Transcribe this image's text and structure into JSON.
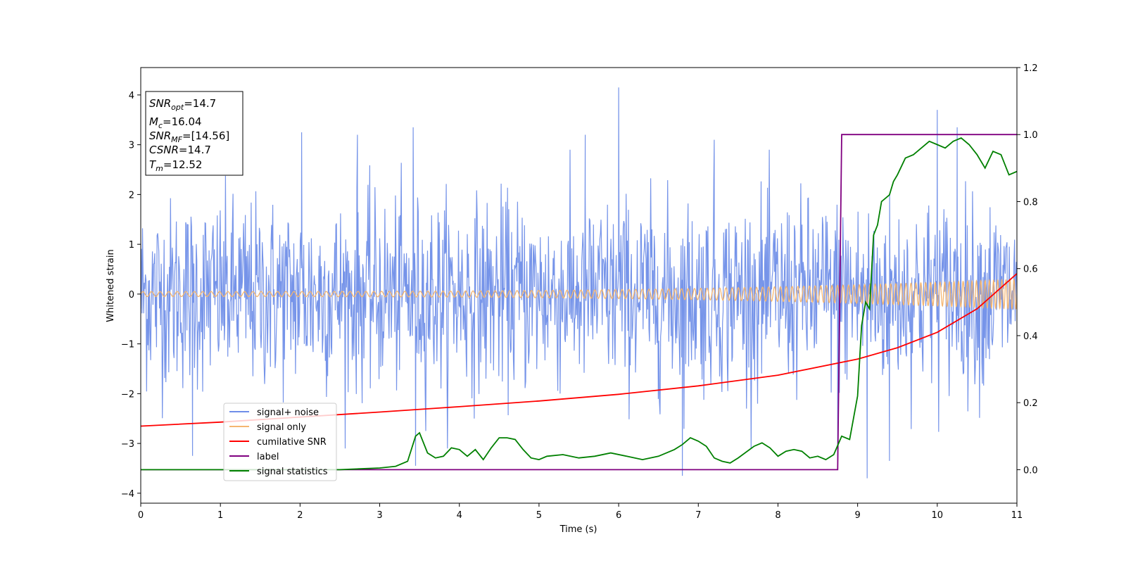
{
  "chart_data": {
    "type": "line",
    "title": "",
    "xlabel": "Time (s)",
    "ylabel": "Whitened strain",
    "xlim": [
      0,
      11
    ],
    "ylim": [
      -4.2,
      4.55
    ],
    "y2lim": [
      -0.1,
      1.2
    ],
    "x_ticks": [
      0,
      1,
      2,
      3,
      4,
      5,
      6,
      7,
      8,
      9,
      10,
      11
    ],
    "y_ticks": [
      -4,
      -3,
      -2,
      -1,
      0,
      1,
      2,
      3,
      4
    ],
    "y_tick_labels": [
      "−4",
      "−3",
      "−2",
      "−1",
      "0",
      "1",
      "2",
      "3",
      "4"
    ],
    "y2_ticks": [
      0.0,
      0.2,
      0.4,
      0.6,
      0.8,
      1.0,
      1.2
    ],
    "y2_tick_labels": [
      "0.0",
      "0.2",
      "0.4",
      "0.6",
      "0.8",
      "1.0",
      "1.2"
    ],
    "legend": {
      "placement": "lower-left",
      "entries": [
        {
          "name": "signal+ noise",
          "color": "#6f8ee8"
        },
        {
          "name": "signal only",
          "color": "#f5b670"
        },
        {
          "name": "cumilative SNR",
          "color": "#ff0000"
        },
        {
          "name": "label",
          "color": "#800080"
        },
        {
          "name": "signal statistics",
          "color": "#008000"
        }
      ]
    },
    "annotation": {
      "placement": "top-left",
      "lines": [
        {
          "sym": "SNR",
          "sub": "opt",
          "val": "=14.7"
        },
        {
          "sym": "M",
          "sub": "c",
          "val": "=16.04"
        },
        {
          "sym": "SNR",
          "sub": "MF",
          "val": "=[14.56]"
        },
        {
          "sym": "CSNR",
          "sub": "",
          "val": "=14.7"
        },
        {
          "sym": "T",
          "sub": "m",
          "val": "=12.52"
        }
      ]
    },
    "series": [
      {
        "name": "signal+ noise",
        "axis": "left",
        "color": "#6f8ee8",
        "style": "noise",
        "sigma": 1.0,
        "samples": 1500,
        "spikes": [
          [
            2.02,
            3.25
          ],
          [
            2.72,
            3.2
          ],
          [
            3.42,
            3.35
          ],
          [
            5.58,
            3.2
          ],
          [
            6.0,
            4.15
          ],
          [
            7.2,
            3.1
          ],
          [
            10.0,
            3.7
          ],
          [
            10.25,
            3.35
          ],
          [
            0.65,
            -3.25
          ],
          [
            3.45,
            -3.45
          ],
          [
            6.8,
            -3.65
          ],
          [
            9.12,
            -3.7
          ],
          [
            9.4,
            -3.35
          ],
          [
            8.75,
            -3.45
          ]
        ]
      },
      {
        "name": "signal only",
        "axis": "left",
        "color": "#f5b670",
        "style": "chirp",
        "t_merge": 12.52,
        "amp_start": 0.05,
        "amp_end": 0.3,
        "cycles": 135
      },
      {
        "name": "cumilative SNR",
        "axis": "right",
        "color": "#ff0000",
        "x": [
          0,
          1,
          2,
          3,
          4,
          5,
          6,
          7,
          8,
          9,
          9.5,
          10,
          10.5,
          11
        ],
        "y": [
          0.13,
          0.142,
          0.157,
          0.172,
          0.188,
          0.205,
          0.225,
          0.25,
          0.282,
          0.33,
          0.364,
          0.41,
          0.48,
          0.585
        ]
      },
      {
        "name": "label",
        "axis": "right",
        "color": "#800080",
        "x": [
          0,
          8.75,
          8.8,
          11
        ],
        "y": [
          0,
          0,
          1,
          1
        ]
      },
      {
        "name": "signal statistics",
        "axis": "right",
        "color": "#008000",
        "x": [
          0,
          2.5,
          3.0,
          3.2,
          3.35,
          3.45,
          3.5,
          3.6,
          3.7,
          3.8,
          3.9,
          4.0,
          4.1,
          4.2,
          4.3,
          4.4,
          4.5,
          4.6,
          4.7,
          4.8,
          4.9,
          5.0,
          5.1,
          5.3,
          5.5,
          5.7,
          5.9,
          6.1,
          6.3,
          6.5,
          6.7,
          6.8,
          6.9,
          7.0,
          7.1,
          7.2,
          7.3,
          7.4,
          7.5,
          7.7,
          7.8,
          7.9,
          8.0,
          8.1,
          8.2,
          8.3,
          8.4,
          8.5,
          8.6,
          8.7,
          8.8,
          8.9,
          9.0,
          9.05,
          9.1,
          9.15,
          9.2,
          9.25,
          9.3,
          9.4,
          9.45,
          9.5,
          9.6,
          9.7,
          9.8,
          9.9,
          10.0,
          10.1,
          10.2,
          10.3,
          10.4,
          10.5,
          10.6,
          10.7,
          10.8,
          10.9,
          11.0
        ],
        "y": [
          0.0,
          0.0,
          0.005,
          0.01,
          0.025,
          0.1,
          0.11,
          0.05,
          0.035,
          0.04,
          0.065,
          0.06,
          0.04,
          0.06,
          0.03,
          0.065,
          0.095,
          0.095,
          0.09,
          0.06,
          0.035,
          0.03,
          0.04,
          0.045,
          0.035,
          0.04,
          0.05,
          0.04,
          0.03,
          0.04,
          0.06,
          0.075,
          0.095,
          0.085,
          0.07,
          0.035,
          0.025,
          0.02,
          0.035,
          0.07,
          0.08,
          0.065,
          0.04,
          0.055,
          0.06,
          0.055,
          0.035,
          0.04,
          0.03,
          0.045,
          0.1,
          0.09,
          0.22,
          0.43,
          0.5,
          0.48,
          0.7,
          0.73,
          0.8,
          0.82,
          0.86,
          0.88,
          0.93,
          0.94,
          0.96,
          0.98,
          0.97,
          0.96,
          0.98,
          0.99,
          0.97,
          0.94,
          0.9,
          0.95,
          0.94,
          0.88,
          0.89
        ]
      }
    ]
  }
}
